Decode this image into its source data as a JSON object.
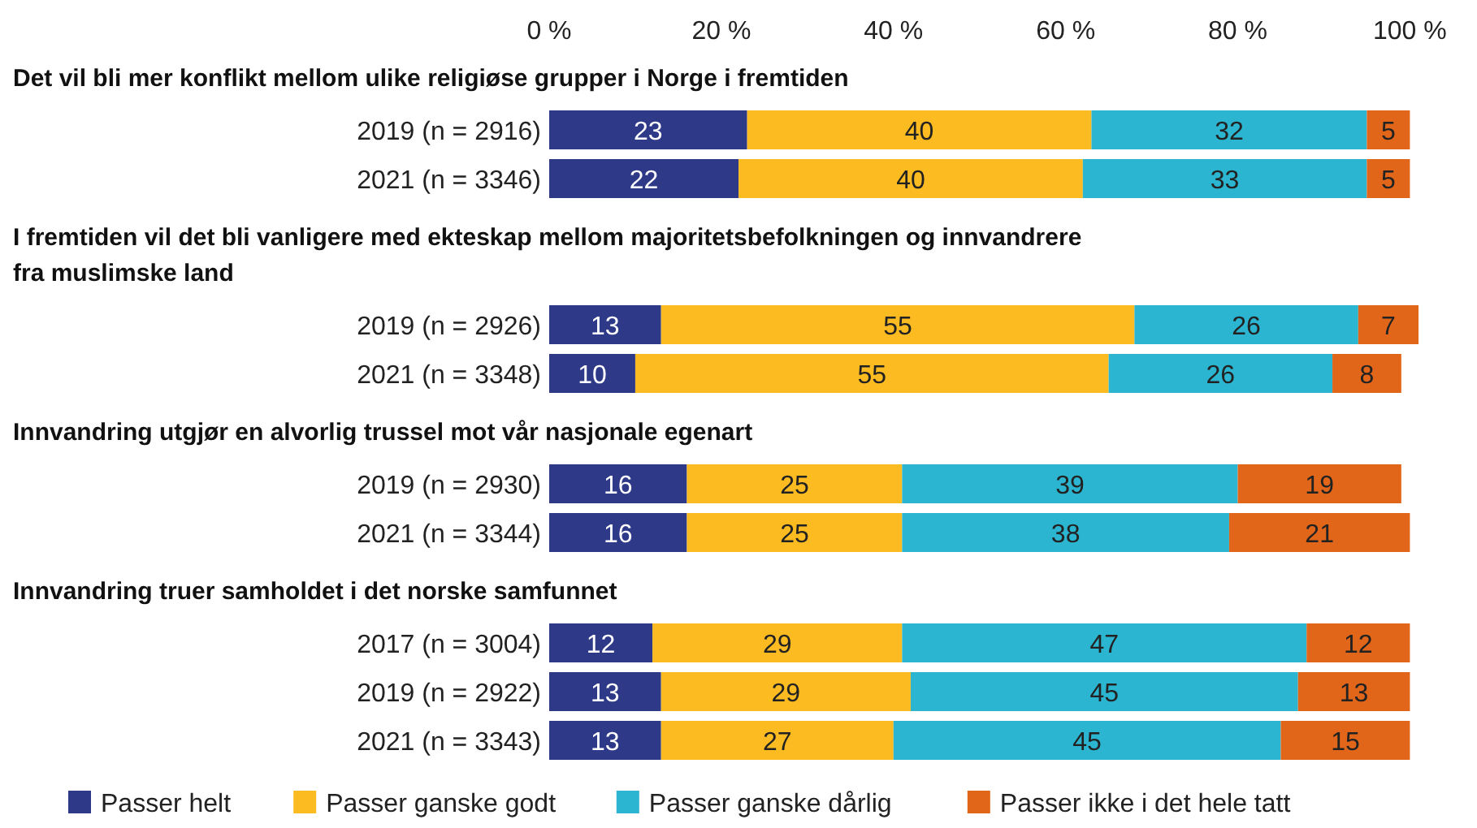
{
  "chart_data": [
    {
      "type": "bar",
      "orientation": "horizontal",
      "stacked": true,
      "title": "Det vil bli mer konflikt mellom ulike religiøse grupper i Norge i fremtiden",
      "categories": [
        "2019 (n = 2916)",
        "2021 (n = 3346)"
      ],
      "xlim": [
        0,
        101
      ],
      "xticks": [
        {
          "value": 0,
          "label": "0 %"
        },
        {
          "value": 20,
          "label": "20 %"
        },
        {
          "value": 40,
          "label": "40 %"
        },
        {
          "value": 60,
          "label": "60 %"
        },
        {
          "value": 80,
          "label": "80 %"
        },
        {
          "value": 100,
          "label": "100 %"
        }
      ],
      "data_labels": true,
      "legend": "bottom",
      "series": [
        {
          "name": "Passer helt",
          "color": "#2e3a87",
          "values": [
            23,
            22
          ]
        },
        {
          "name": "Passer ganske godt",
          "color": "#fbbb21",
          "values": [
            40,
            40
          ]
        },
        {
          "name": "Passer ganske dårlig",
          "color": "#2bb5d0",
          "values": [
            32,
            33
          ]
        },
        {
          "name": "Passer ikke i det hele tatt",
          "color": "#e2661a",
          "values": [
            5,
            5
          ]
        }
      ]
    },
    {
      "type": "bar",
      "orientation": "horizontal",
      "stacked": true,
      "title": "I fremtiden vil det bli vanligere med ekteskap mellom majoritetsbefolkningen og innvandrere fra muslimske land",
      "categories": [
        "2019 (n = 2926)",
        "2021 (n = 3348)"
      ],
      "xlim": [
        0,
        101
      ],
      "tick_labels": "y",
      "data_labels": true,
      "series": [
        {
          "color": "#2e3a87",
          "values": [
            13,
            10
          ]
        },
        {
          "color": "#fbbb21",
          "values": [
            55,
            55
          ]
        },
        {
          "color": "#2bb5d0",
          "values": [
            26,
            26
          ]
        },
        {
          "color": "#e2661a",
          "values": [
            7,
            8
          ]
        }
      ]
    },
    {
      "type": "bar",
      "orientation": "horizontal",
      "stacked": true,
      "title": "Innvandring utgjør en alvorlig trussel mot vår nasjonale egenart",
      "categories": [
        "2019 (n = 2930)",
        "2021 (n = 3344)"
      ],
      "xlim": [
        0,
        101
      ],
      "tick_labels": "y",
      "data_labels": true,
      "series": [
        {
          "color": "#2e3a87",
          "values": [
            16,
            16
          ]
        },
        {
          "color": "#fbbb21",
          "values": [
            25,
            25
          ]
        },
        {
          "color": "#2bb5d0",
          "values": [
            39,
            38
          ]
        },
        {
          "color": "#e2661a",
          "values": [
            19,
            21
          ]
        }
      ]
    },
    {
      "type": "bar",
      "orientation": "horizontal",
      "stacked": true,
      "title": "Innvandring truer samholdet i det norske samfunnet",
      "categories": [
        "2017 (n = 3004)",
        "2019 (n = 2922)",
        "2021 (n = 3343)"
      ],
      "xlim": [
        0,
        101
      ],
      "tick_labels": "y",
      "data_labels": true,
      "series": [
        {
          "color": "#2e3a87",
          "values": [
            12,
            13,
            13
          ]
        },
        {
          "color": "#fbbb21",
          "values": [
            29,
            29,
            27
          ]
        },
        {
          "color": "#2bb5d0",
          "values": [
            47,
            45,
            45
          ]
        },
        {
          "color": "#e2661a",
          "values": [
            12,
            13,
            15
          ]
        }
      ]
    }
  ]
}
